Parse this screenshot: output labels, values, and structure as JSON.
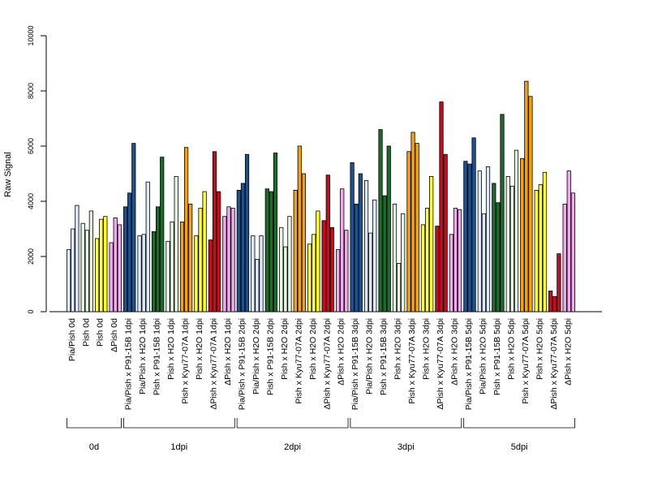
{
  "chart_data": {
    "type": "bar",
    "ylabel": "Raw Signal",
    "ylim": [
      0,
      10000
    ],
    "yticks": [
      0,
      2000,
      4000,
      6000,
      8000,
      10000
    ],
    "grid": false,
    "categories": [
      {
        "label": "Pia/Pish 0d",
        "color": "#dce9f8",
        "values": [
          2250,
          3000,
          3850
        ]
      },
      {
        "label": "Pish 0d",
        "color": "#e9f8e2",
        "values": [
          3200,
          2950,
          3650
        ]
      },
      {
        "label": "Pish 0d",
        "color": "#ffff33",
        "values": [
          2650,
          3350,
          3450
        ]
      },
      {
        "label": "ΔPish 0d",
        "color": "#f5a8f0",
        "values": [
          2500,
          3400,
          3150
        ]
      },
      {
        "label": "Pia/Pish x P91-15B 1dpi",
        "color": "#1a5296",
        "values": [
          3800,
          4300,
          6100
        ]
      },
      {
        "label": "Pia/Pish x H2O 1dpi",
        "color": "#dce9f8",
        "values": [
          2750,
          2800,
          4700
        ]
      },
      {
        "label": "Pish x P91-15B 1dpi",
        "color": "#1c6b2b",
        "values": [
          2900,
          3800,
          5600
        ]
      },
      {
        "label": "Pish x H2O 1dpi",
        "color": "#e9f8e2",
        "values": [
          2550,
          3250,
          4900
        ]
      },
      {
        "label": "Pish x Kyu77-07A 1dpi",
        "color": "#f5a20d",
        "values": [
          3250,
          5950,
          3900
        ]
      },
      {
        "label": "Pish x H2O 1dpi",
        "color": "#ffff33",
        "values": [
          2750,
          3750,
          4350
        ]
      },
      {
        "label": "ΔPish x Kyu77-07A 1dpi",
        "color": "#cc0a1e",
        "values": [
          2600,
          5800,
          4350
        ]
      },
      {
        "label": "ΔPish x H2O 1dpi",
        "color": "#f5a8f0",
        "values": [
          3450,
          3800,
          3750
        ]
      },
      {
        "label": "Pia/Pish x P91-15B 2dpi",
        "color": "#1a5296",
        "values": [
          4400,
          4650,
          5700
        ]
      },
      {
        "label": "Pia/Pish x H2O 2dpi",
        "color": "#dce9f8",
        "values": [
          2750,
          1900,
          2750
        ]
      },
      {
        "label": "Pish x P91-15B 2dpi",
        "color": "#1c6b2b",
        "values": [
          4450,
          4350,
          5750
        ]
      },
      {
        "label": "Pish x H2O 2dpi",
        "color": "#e9f8e2",
        "values": [
          3050,
          2350,
          3450
        ]
      },
      {
        "label": "Pish x Kyu77-07A 2dpi",
        "color": "#f5a20d",
        "values": [
          4400,
          6000,
          5000
        ]
      },
      {
        "label": "Pish x H2O 2dpi",
        "color": "#ffff33",
        "values": [
          2450,
          2800,
          3650
        ]
      },
      {
        "label": "ΔPish x Kyu77-07A 2dpi",
        "color": "#cc0a1e",
        "values": [
          3300,
          4950,
          3050
        ]
      },
      {
        "label": "ΔPish x H2O 2dpi",
        "color": "#f5a8f0",
        "values": [
          2250,
          4450,
          2950
        ]
      },
      {
        "label": "Pia/Pish x P91-15B 3dpi",
        "color": "#1a5296",
        "values": [
          5400,
          3900,
          5000
        ]
      },
      {
        "label": "Pia/Pish x H2O 3dpi",
        "color": "#dce9f8",
        "values": [
          4750,
          2850,
          4050
        ]
      },
      {
        "label": "Pish x P91-15B 3dpi",
        "color": "#1c6b2b",
        "values": [
          6600,
          4200,
          6000
        ]
      },
      {
        "label": "Pish x H2O 3dpi",
        "color": "#e9f8e2",
        "values": [
          3900,
          1750,
          3550
        ]
      },
      {
        "label": "Pish x Kyu77-07A 3dpi",
        "color": "#f5a20d",
        "values": [
          5800,
          6500,
          6100
        ]
      },
      {
        "label": "Pish x H2O 3dpi",
        "color": "#ffff33",
        "values": [
          3150,
          3750,
          4900
        ]
      },
      {
        "label": "ΔPish x Kyu77-07A 3dpi",
        "color": "#cc0a1e",
        "values": [
          3100,
          7600,
          5700
        ]
      },
      {
        "label": "ΔPish x H2O 3dpi",
        "color": "#f5a8f0",
        "values": [
          2800,
          3750,
          3700
        ]
      },
      {
        "label": "Pia/Pish x P91-15B 5dpi",
        "color": "#1a5296",
        "values": [
          5450,
          5350,
          6300
        ]
      },
      {
        "label": "Pia/Pish x H2O 5dpi",
        "color": "#dce9f8",
        "values": [
          5100,
          3550,
          5250
        ]
      },
      {
        "label": "Pish x P91-15B 5dpi",
        "color": "#1c6b2b",
        "values": [
          4650,
          3950,
          7150
        ]
      },
      {
        "label": "Pish x H2O 5dpi",
        "color": "#e9f8e2",
        "values": [
          4900,
          4550,
          5850
        ]
      },
      {
        "label": "Pish x Kyu77-07A 5dpi",
        "color": "#f5a20d",
        "values": [
          5550,
          8350,
          7800
        ]
      },
      {
        "label": "Pish x H2O 5dpi",
        "color": "#ffff33",
        "values": [
          4400,
          4600,
          5050
        ]
      },
      {
        "label": "ΔPish x Kyu77-07A 5dpi",
        "color": "#cc0a1e",
        "values": [
          750,
          550,
          2100
        ]
      },
      {
        "label": "ΔPish x H2O 5dpi",
        "color": "#f5a8f0",
        "values": [
          3900,
          5100,
          4300
        ]
      }
    ],
    "groups": [
      {
        "label": "0d",
        "start": 0,
        "end": 3
      },
      {
        "label": "1dpi",
        "start": 4,
        "end": 11
      },
      {
        "label": "2dpi",
        "start": 12,
        "end": 19
      },
      {
        "label": "3dpi",
        "start": 20,
        "end": 27
      },
      {
        "label": "5dpi",
        "start": 28,
        "end": 35
      }
    ]
  }
}
